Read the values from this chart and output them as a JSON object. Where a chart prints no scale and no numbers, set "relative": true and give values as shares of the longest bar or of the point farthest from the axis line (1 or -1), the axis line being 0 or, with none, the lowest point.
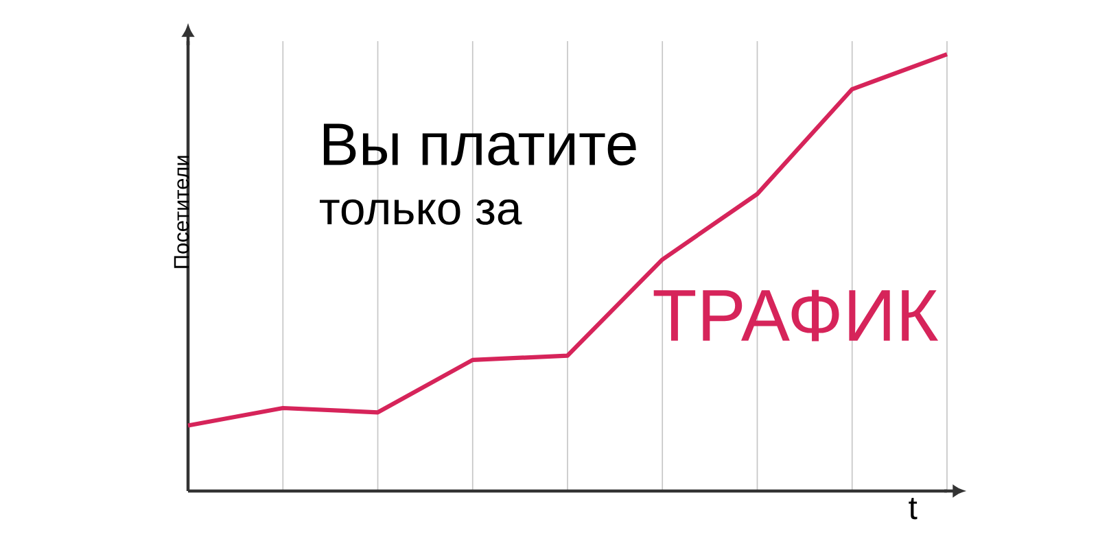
{
  "chart_data": {
    "type": "line",
    "relative": true,
    "xlabel": "t",
    "ylabel": "Посетители",
    "categories": [
      null,
      null,
      null,
      null,
      null,
      null,
      null,
      null,
      null
    ],
    "series": [
      {
        "color": "#d6245a",
        "values": [
          0.15,
          0.19,
          0.18,
          0.3,
          0.31,
          0.53,
          0.68,
          0.92,
          1.0
        ]
      }
    ],
    "annotations": [
      "Вы платите",
      "только за",
      "ТРАФИК"
    ],
    "grid": "x",
    "marker": "none",
    "line_style": "solid",
    "tick_labels": false
  }
}
